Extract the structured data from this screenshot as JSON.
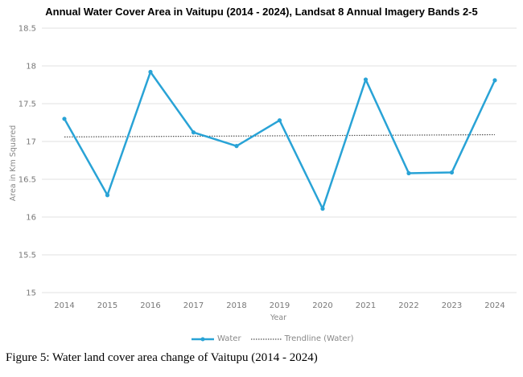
{
  "chart_data": {
    "type": "line",
    "title": "Annual Water Cover Area in Vaitupu (2014 - 2024), Landsat 8 Annual Imagery Bands 2-5",
    "xlabel": "Year",
    "ylabel": "Area in Km Squared",
    "categories": [
      "2014",
      "2015",
      "2016",
      "2017",
      "2018",
      "2019",
      "2020",
      "2021",
      "2022",
      "2023",
      "2024"
    ],
    "series": [
      {
        "name": "Water",
        "values": [
          17.3,
          16.29,
          17.92,
          17.12,
          16.94,
          17.28,
          16.11,
          17.82,
          16.58,
          16.59,
          17.81
        ],
        "color": "#29a3d6"
      }
    ],
    "trendline": {
      "name": "Trendline (Water)",
      "values": [
        17.06,
        17.09
      ],
      "color": "#555555"
    },
    "ylim": [
      15,
      18.5
    ],
    "yticks": [
      "15",
      "15.5",
      "16",
      "16.5",
      "17",
      "17.5",
      "18",
      "18.5"
    ],
    "grid": true,
    "legend_position": "bottom"
  },
  "caption": "Figure 5: Water land cover area change of Vaitupu (2014 - 2024)"
}
